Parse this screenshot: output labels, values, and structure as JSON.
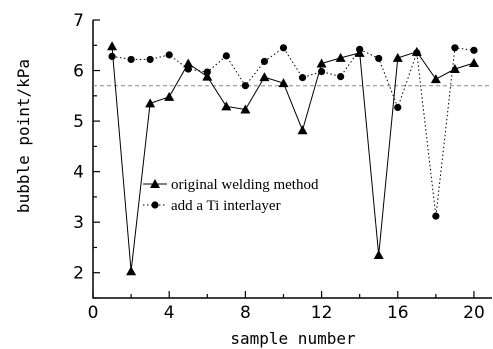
{
  "chart_data": {
    "type": "line",
    "xlabel": "sample number",
    "ylabel": "bubble point/kPa",
    "xlim": [
      0,
      21
    ],
    "ylim": [
      1.5,
      7
    ],
    "xticks": [
      0,
      4,
      8,
      12,
      16,
      20
    ],
    "yticks": [
      2,
      3,
      4,
      5,
      6,
      7
    ],
    "grid": false,
    "legend_position": "center-left",
    "reference_line": {
      "y": 5.7,
      "style": "dashed",
      "color": "#888888"
    },
    "x": [
      1,
      2,
      3,
      4,
      5,
      6,
      7,
      8,
      9,
      10,
      11,
      12,
      13,
      14,
      15,
      16,
      17,
      18,
      19,
      20
    ],
    "series": [
      {
        "name": "original welding method",
        "marker": "triangle",
        "line_style": "solid",
        "color": "#000000",
        "values": [
          6.48,
          2.03,
          5.35,
          5.48,
          6.14,
          5.88,
          5.29,
          5.23,
          5.87,
          5.75,
          4.82,
          6.14,
          6.25,
          6.35,
          2.35,
          6.25,
          6.37,
          5.83,
          6.03,
          6.15
        ]
      },
      {
        "name": "add a Ti interlayer",
        "marker": "circle",
        "line_style": "dotted",
        "color": "#000000",
        "values": [
          6.28,
          6.22,
          6.22,
          6.31,
          6.03,
          5.97,
          6.29,
          5.7,
          6.18,
          6.45,
          5.86,
          5.98,
          5.88,
          6.42,
          6.24,
          5.27,
          6.35,
          3.12,
          6.45,
          6.4
        ]
      }
    ]
  }
}
